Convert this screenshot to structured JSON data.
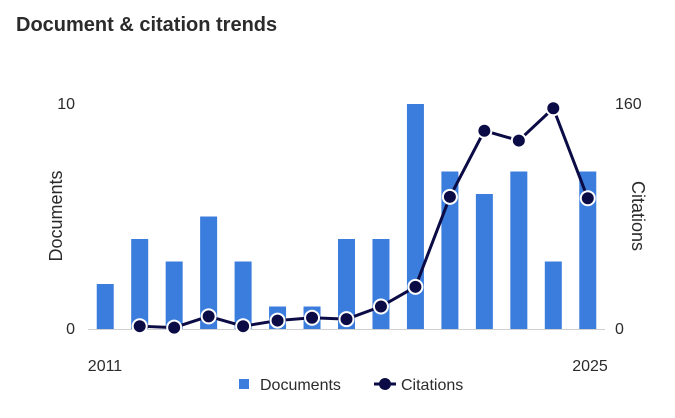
{
  "header": {
    "title": "Document & citation trends"
  },
  "colors": {
    "documents": "#3b7ddd",
    "citations": "#0b0b45",
    "axis": "#d0d0d0"
  },
  "chart_data": {
    "type": "bar",
    "title": "Document & citation trends",
    "x": [
      2011,
      2012,
      2013,
      2014,
      2015,
      2016,
      2017,
      2018,
      2019,
      2020,
      2021,
      2022,
      2023,
      2024,
      2025
    ],
    "x_tick_labels": [
      "2011",
      "2025"
    ],
    "series": [
      {
        "name": "Documents",
        "type": "bar",
        "axis": "left",
        "values": [
          2,
          4,
          3,
          5,
          3,
          1,
          1,
          4,
          4,
          10,
          7,
          6,
          7,
          3,
          7
        ]
      },
      {
        "name": "Citations",
        "type": "line",
        "axis": "right",
        "values": [
          null,
          2,
          1,
          9,
          2,
          6,
          8,
          7,
          16,
          30,
          94,
          141,
          134,
          157,
          93
        ]
      }
    ],
    "ylabel": "Documents",
    "ylim": [
      0,
      10
    ],
    "y_tick_labels": [
      "0",
      "10"
    ],
    "y2label": "Citations",
    "y2lim": [
      0,
      160
    ],
    "y2_tick_labels": [
      "0",
      "160"
    ],
    "grid": false,
    "legend": {
      "placement": "bottom",
      "entries": [
        "Documents",
        "Citations"
      ]
    }
  }
}
